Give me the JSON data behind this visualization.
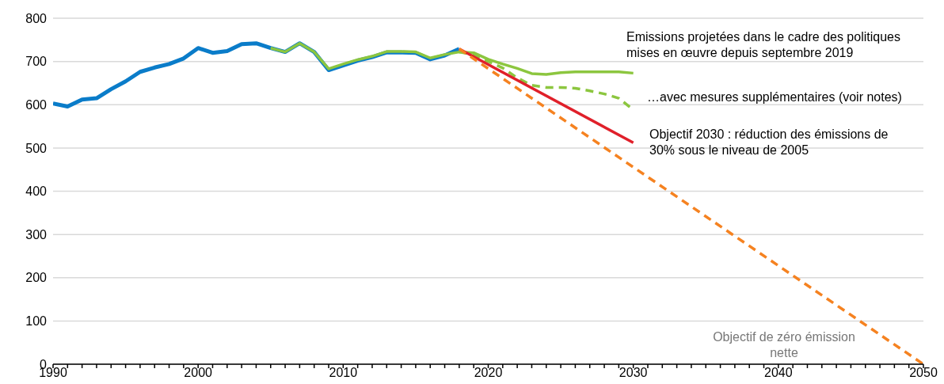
{
  "chart_data": {
    "type": "line",
    "xlim": [
      1990,
      2050
    ],
    "ylim": [
      0,
      800
    ],
    "yticks": [
      0,
      100,
      200,
      300,
      400,
      500,
      600,
      700,
      800
    ],
    "xticks": [
      1990,
      {
        "value": 1991,
        "label": null
      },
      {
        "value": 1992,
        "label": null
      },
      {
        "value": 1993,
        "label": null
      },
      {
        "value": 1994,
        "label": null
      },
      {
        "value": 1995,
        "label": null
      },
      {
        "value": 1996,
        "label": null
      },
      {
        "value": 1997,
        "label": null
      },
      {
        "value": 1998,
        "label": null
      },
      {
        "value": 1999,
        "label": null
      },
      2000,
      {
        "value": 2001,
        "label": null
      },
      {
        "value": 2002,
        "label": null
      },
      {
        "value": 2003,
        "label": null
      },
      {
        "value": 2004,
        "label": null
      },
      {
        "value": 2005,
        "label": null
      },
      {
        "value": 2006,
        "label": null
      },
      {
        "value": 2007,
        "label": null
      },
      {
        "value": 2008,
        "label": null
      },
      {
        "value": 2009,
        "label": null
      },
      2010,
      {
        "value": 2011,
        "label": null
      },
      {
        "value": 2012,
        "label": null
      },
      {
        "value": 2013,
        "label": null
      },
      {
        "value": 2014,
        "label": null
      },
      {
        "value": 2015,
        "label": null
      },
      {
        "value": 2016,
        "label": null
      },
      {
        "value": 2017,
        "label": null
      },
      {
        "value": 2018,
        "label": null
      },
      {
        "value": 2019,
        "label": null
      },
      2020,
      {
        "value": 2021,
        "label": null
      },
      {
        "value": 2022,
        "label": null
      },
      {
        "value": 2023,
        "label": null
      },
      {
        "value": 2024,
        "label": null
      },
      {
        "value": 2025,
        "label": null
      },
      {
        "value": 2026,
        "label": null
      },
      {
        "value": 2027,
        "label": null
      },
      {
        "value": 2028,
        "label": null
      },
      {
        "value": 2029,
        "label": null
      },
      2030,
      {
        "value": 2031,
        "label": null
      },
      {
        "value": 2032,
        "label": null
      },
      {
        "value": 2033,
        "label": null
      },
      {
        "value": 2034,
        "label": null
      },
      {
        "value": 2035,
        "label": null
      },
      {
        "value": 2036,
        "label": null
      },
      {
        "value": 2037,
        "label": null
      },
      {
        "value": 2038,
        "label": null
      },
      {
        "value": 2039,
        "label": null
      },
      2040,
      {
        "value": 2041,
        "label": null
      },
      {
        "value": 2042,
        "label": null
      },
      {
        "value": 2043,
        "label": null
      },
      {
        "value": 2044,
        "label": null
      },
      {
        "value": 2045,
        "label": null
      },
      {
        "value": 2046,
        "label": null
      },
      {
        "value": 2047,
        "label": null
      },
      {
        "value": 2048,
        "label": null
      },
      {
        "value": 2049,
        "label": null
      },
      2050
    ],
    "grid": "y",
    "legend": false,
    "marker": "none",
    "series": [
      {
        "color": "#0a7cc9",
        "line_style": "solid",
        "x": [
          1990,
          1991,
          1992,
          1993,
          1994,
          1995,
          1996,
          1997,
          1998,
          1999,
          2000,
          2001,
          2002,
          2003,
          2004,
          2005,
          2006,
          2007,
          2008,
          2009,
          2010,
          2011,
          2012,
          2013,
          2014,
          2015,
          2016,
          2017,
          2018
        ],
        "values": [
          603,
          596,
          612,
          615,
          636,
          654,
          676,
          686,
          694,
          707,
          731,
          720,
          724,
          740,
          742,
          731,
          722,
          742,
          722,
          680,
          691,
          702,
          710,
          721,
          721,
          720,
          705,
          714,
          729
        ]
      },
      {
        "color": "#8cc63f",
        "line_style": "solid",
        "x": [
          2005,
          2006,
          2007,
          2008,
          2009,
          2010,
          2011,
          2012,
          2013,
          2014,
          2015,
          2016,
          2017,
          2018,
          2019,
          2020,
          2021,
          2022,
          2023,
          2024,
          2025,
          2026,
          2027,
          2028,
          2029,
          2030
        ],
        "values": [
          731,
          722,
          742,
          722,
          683,
          694,
          704,
          712,
          723,
          723,
          722,
          708,
          716,
          722,
          720,
          705,
          694,
          684,
          672,
          670,
          674,
          676,
          676,
          676,
          676,
          673
        ]
      },
      {
        "color": "#8cc63f",
        "line_style": "dashed",
        "x": [
          2018,
          2019,
          2020,
          2021,
          2022,
          2023,
          2024,
          2025,
          2026,
          2027,
          2028,
          2029,
          2030
        ],
        "values": [
          722,
          715,
          700,
          685,
          662,
          645,
          640,
          640,
          638,
          632,
          625,
          615,
          588
        ]
      },
      {
        "color": "#e0202a",
        "line_style": "solid",
        "x": [
          2018,
          2030
        ],
        "values": [
          729,
          512
        ]
      },
      {
        "color": "#f58220",
        "line_style": "dashed",
        "x": [
          2018,
          2050
        ],
        "values": [
          729,
          0
        ]
      }
    ],
    "annotations": [
      "Emissions projetées dans le cadre des politiques mises en œuvre depuis septembre 2019",
      "…avec mesures supplémentaires (voir notes)",
      "Objectif 2030 : réduction des émissions de 30% sous le niveau de 2005",
      "Objectif de zéro émission nette"
    ]
  }
}
